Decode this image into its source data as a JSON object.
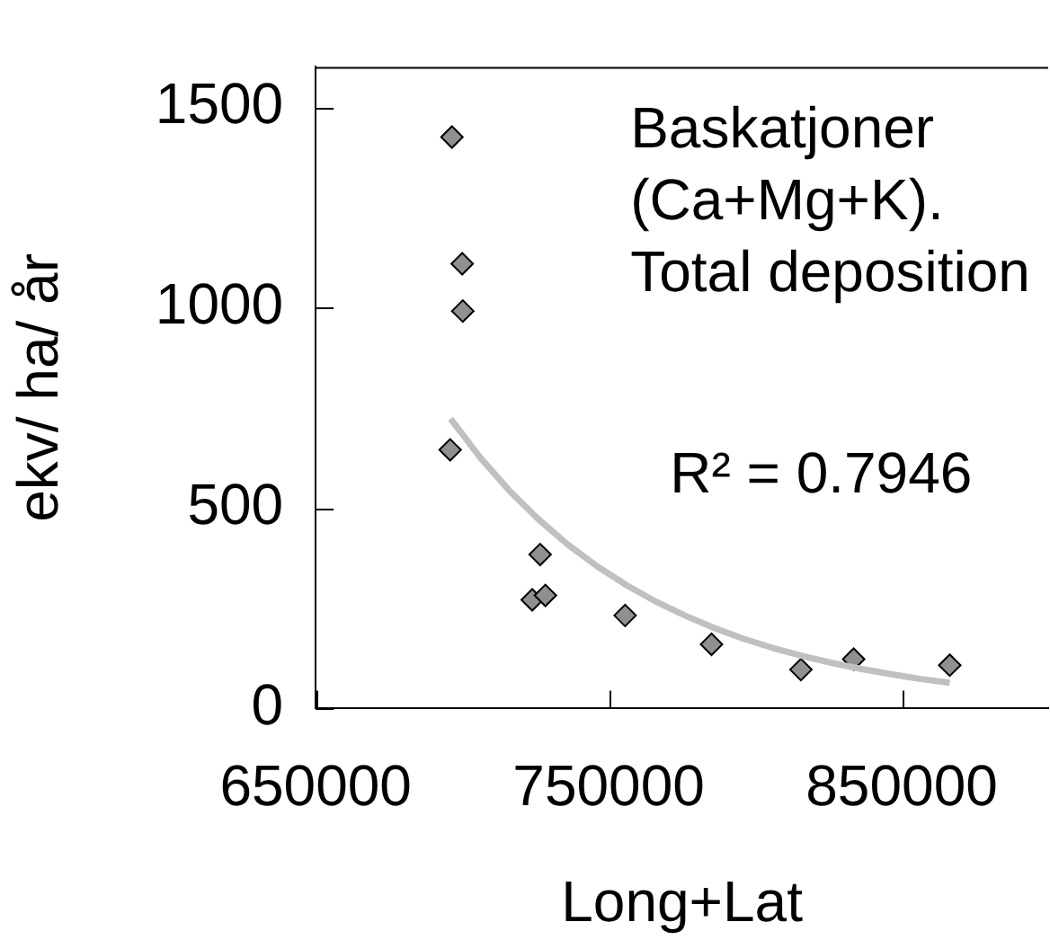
{
  "chart_data": {
    "type": "scatter",
    "xlabel": "Long+Lat",
    "ylabel": "ekv/ ha/ år",
    "xlim": [
      650000,
      900000
    ],
    "xticks": [
      650000,
      750000,
      850000
    ],
    "ylim": [
      0,
      1600
    ],
    "yticks": [
      0,
      500,
      1000,
      1500
    ],
    "grid": false,
    "legend": false,
    "marker": "diamond",
    "annotations": [
      "Baskatjoner\n(Ca+Mg+K).\nTotal deposition",
      "R² = 0.7946"
    ],
    "series": [
      {
        "type": "scatter",
        "color": "#909090",
        "x": [
          696500,
          700000,
          700200,
          695900,
          726600,
          723900,
          728400,
          755600,
          785100,
          815600,
          833600,
          866400
        ],
        "values": [
          1425,
          1109,
          991,
          645,
          384,
          271,
          282,
          232,
          160,
          97,
          123,
          108
        ]
      },
      {
        "type": "line",
        "color": "#c0c0c0",
        "marker": "none",
        "line_style": "solid",
        "x": [
          696000,
          706000,
          716000,
          726000,
          736000,
          746000,
          756000,
          766000,
          776000,
          786000,
          796000,
          806000,
          816000,
          826000,
          836000,
          846000,
          856000,
          866400
        ],
        "values": [
          723,
          627,
          544,
          472,
          409,
          355,
          308,
          267,
          232,
          201,
          174,
          151,
          131,
          114,
          99,
          86,
          74,
          64
        ]
      }
    ]
  }
}
